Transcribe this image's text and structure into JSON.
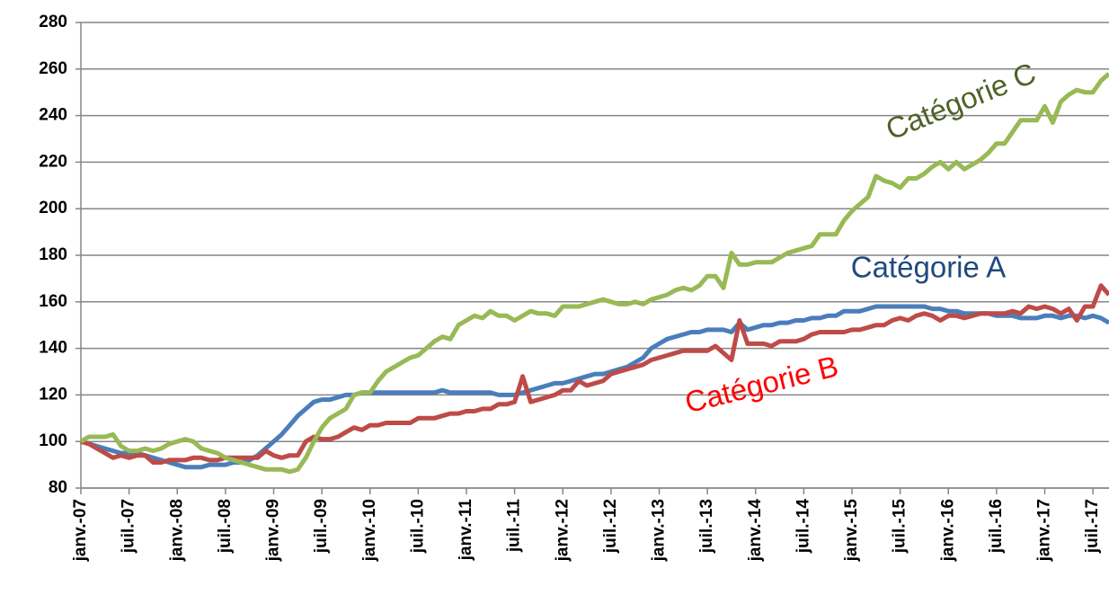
{
  "chart_data": {
    "type": "line",
    "categories": [
      "janv.-07",
      null,
      null,
      null,
      null,
      null,
      "juil.-07",
      null,
      null,
      null,
      null,
      null,
      "janv.-08",
      null,
      null,
      null,
      null,
      null,
      "juil.-08",
      null,
      null,
      null,
      null,
      null,
      "janv.-09",
      null,
      null,
      null,
      null,
      null,
      "juil.-09",
      null,
      null,
      null,
      null,
      null,
      "janv.-10",
      null,
      null,
      null,
      null,
      null,
      "juil.-10",
      null,
      null,
      null,
      null,
      null,
      "janv.-11",
      null,
      null,
      null,
      null,
      null,
      "juil.-11",
      null,
      null,
      null,
      null,
      null,
      "janv.-12",
      null,
      null,
      null,
      null,
      null,
      "juil.-12",
      null,
      null,
      null,
      null,
      null,
      "janv.-13",
      null,
      null,
      null,
      null,
      null,
      "juil.-13",
      null,
      null,
      null,
      null,
      null,
      "janv.-14",
      null,
      null,
      null,
      null,
      null,
      "juil.-14",
      null,
      null,
      null,
      null,
      null,
      "janv.-15",
      null,
      null,
      null,
      null,
      null,
      "juil.-15",
      null,
      null,
      null,
      null,
      null,
      "janv.-16",
      null,
      null,
      null,
      null,
      null,
      "juil.-16",
      null,
      null,
      null,
      null,
      null,
      "janv.-17",
      null,
      null,
      null,
      null,
      null,
      "juil.-17",
      null,
      null
    ],
    "series": [
      {
        "name": "Catégorie A",
        "color": "#4a7ebb",
        "values": [
          100,
          99,
          98,
          97,
          96,
          95,
          95,
          95,
          94,
          93,
          92,
          91,
          90,
          89,
          89,
          89,
          90,
          90,
          90,
          91,
          91,
          92,
          94,
          97,
          100,
          103,
          107,
          111,
          114,
          117,
          118,
          118,
          119,
          120,
          120,
          121,
          121,
          121,
          121,
          121,
          121,
          121,
          121,
          121,
          121,
          122,
          121,
          121,
          121,
          121,
          121,
          121,
          120,
          120,
          120,
          121,
          122,
          123,
          124,
          125,
          125,
          126,
          127,
          128,
          129,
          129,
          130,
          131,
          132,
          134,
          136,
          140,
          142,
          144,
          145,
          146,
          147,
          147,
          148,
          148,
          148,
          147,
          151,
          148,
          149,
          150,
          150,
          151,
          151,
          152,
          152,
          153,
          153,
          154,
          154,
          156,
          156,
          156,
          157,
          158,
          158,
          158,
          158,
          158,
          158,
          158,
          157,
          157,
          156,
          156,
          155,
          155,
          155,
          155,
          154,
          154,
          154,
          153,
          153,
          153,
          154,
          154,
          153,
          154,
          154,
          153,
          154,
          153,
          151
        ]
      },
      {
        "name": "Catégorie B",
        "color": "#be4b48",
        "values": [
          100,
          99,
          97,
          95,
          93,
          94,
          93,
          94,
          94,
          91,
          91,
          92,
          92,
          92,
          93,
          93,
          92,
          92,
          93,
          93,
          93,
          93,
          93,
          96,
          94,
          93,
          94,
          94,
          100,
          102,
          101,
          101,
          102,
          104,
          106,
          105,
          107,
          107,
          108,
          108,
          108,
          108,
          110,
          110,
          110,
          111,
          112,
          112,
          113,
          113,
          114,
          114,
          116,
          116,
          117,
          128,
          117,
          118,
          119,
          120,
          122,
          122,
          126,
          124,
          125,
          126,
          129,
          130,
          131,
          132,
          133,
          135,
          136,
          137,
          138,
          139,
          139,
          139,
          139,
          141,
          138,
          135,
          152,
          142,
          142,
          142,
          141,
          143,
          143,
          143,
          144,
          146,
          147,
          147,
          147,
          147,
          148,
          148,
          149,
          150,
          150,
          152,
          153,
          152,
          154,
          155,
          154,
          152,
          154,
          154,
          153,
          154,
          155,
          155,
          155,
          155,
          156,
          155,
          158,
          157,
          158,
          157,
          155,
          157,
          152,
          158,
          158,
          167,
          163
        ]
      },
      {
        "name": "Catégorie C",
        "color": "#98b954",
        "values": [
          100,
          102,
          102,
          102,
          103,
          98,
          96,
          96,
          97,
          96,
          97,
          99,
          100,
          101,
          100,
          97,
          96,
          95,
          93,
          92,
          91,
          90,
          89,
          88,
          88,
          88,
          87,
          88,
          93,
          100,
          106,
          110,
          112,
          114,
          120,
          121,
          121,
          126,
          130,
          132,
          134,
          136,
          137,
          140,
          143,
          145,
          144,
          150,
          152,
          154,
          153,
          156,
          154,
          154,
          152,
          154,
          156,
          155,
          155,
          154,
          158,
          158,
          158,
          159,
          160,
          161,
          160,
          159,
          159,
          160,
          159,
          161,
          162,
          163,
          165,
          166,
          165,
          167,
          171,
          171,
          166,
          181,
          176,
          176,
          177,
          177,
          177,
          179,
          181,
          182,
          183,
          184,
          189,
          189,
          189,
          195,
          199,
          202,
          205,
          214,
          212,
          211,
          209,
          213,
          213,
          215,
          218,
          220,
          217,
          220,
          217,
          219,
          221,
          224,
          228,
          228,
          233,
          238,
          238,
          238,
          244,
          237,
          246,
          249,
          251,
          250,
          250,
          255,
          258
        ]
      }
    ],
    "annotations": [
      {
        "text": "Catégorie A",
        "color": "#1f497d"
      },
      {
        "text": "Catégorie B",
        "color": "#ff0000"
      },
      {
        "text": "Catégorie C",
        "color": "#4f6228"
      }
    ],
    "ylim": [
      80,
      280
    ],
    "yticks": [
      80,
      100,
      120,
      140,
      160,
      180,
      200,
      220,
      240,
      260,
      280
    ],
    "grid": true
  }
}
